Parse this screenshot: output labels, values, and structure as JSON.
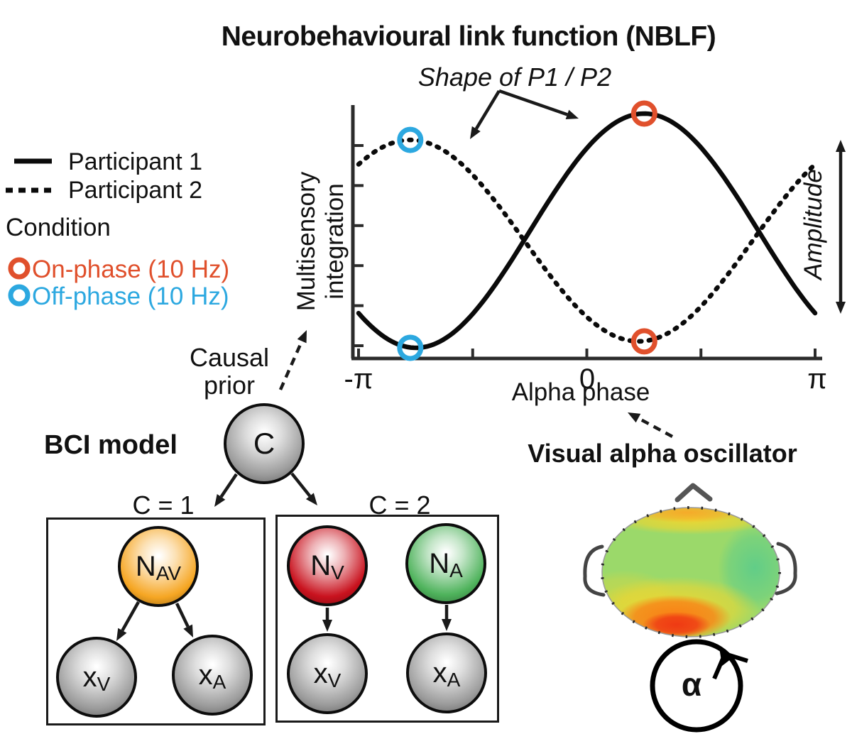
{
  "figure_title": "Neurobehavioural link function (NBLF)",
  "nblf": {
    "subtitle": "Shape of P1 / P2",
    "xlabel": "Alpha phase",
    "ylabel_line1": "Multisensory",
    "ylabel_line2": "integration",
    "amplitude_label": "Amplitude",
    "tick_neg_pi": "-π",
    "tick_zero": "0",
    "tick_pi": "π"
  },
  "legend": {
    "participant1": "Participant 1",
    "participant2": "Participant 2",
    "condition_title": "Condition",
    "on_phase_label": "On-phase (10 Hz)",
    "off_phase_label": "Off-phase (10 Hz)",
    "on_phase_color": "#E0502C",
    "off_phase_color": "#2CA8E0"
  },
  "chart_data": {
    "type": "line",
    "title": "Neurobehavioural link function (NBLF)",
    "xlabel": "Alpha phase",
    "ylabel": "Multisensory integration",
    "x_domain_rad": [
      -3.1416,
      3.1416
    ],
    "x_tick_labels": [
      "-π",
      "0",
      "π"
    ],
    "y_axis_numeric_labels": false,
    "series": [
      {
        "name": "Participant 1",
        "line_style": "solid",
        "color": "#0a0a0a",
        "waveform": "cosine",
        "peak_phase_rad": 0.79,
        "trough_phase_rad": -2.35,
        "amplitude_norm": 1.0
      },
      {
        "name": "Participant 2",
        "line_style": "dotted",
        "color": "#0a0a0a",
        "waveform": "cosine",
        "peak_phase_rad": -2.43,
        "trough_phase_rad": 0.71,
        "amplitude_norm": 0.86
      }
    ],
    "markers": [
      {
        "condition": "On-phase (10 Hz)",
        "color": "#E0502C",
        "series": "Participant 1",
        "phase_rad": 0.79,
        "position": "peak"
      },
      {
        "condition": "On-phase (10 Hz)",
        "color": "#E0502C",
        "series": "Participant 2",
        "phase_rad": 0.79,
        "position": "trough"
      },
      {
        "condition": "Off-phase (10 Hz)",
        "color": "#2CA8E0",
        "series": "Participant 2",
        "phase_rad": -2.43,
        "position": "peak"
      },
      {
        "condition": "Off-phase (10 Hz)",
        "color": "#2CA8E0",
        "series": "Participant 1",
        "phase_rad": -2.43,
        "position": "trough"
      }
    ],
    "annotations": [
      "Shape of P1 / P2",
      "Amplitude"
    ]
  },
  "bci": {
    "model_label": "BCI model",
    "causal_prior_line1": "Causal",
    "causal_prior_line2": "prior",
    "c_node_label": "C",
    "c1_label": "C = 1",
    "c2_label": "C = 2",
    "node_nav": {
      "main": "N",
      "sub": "AV"
    },
    "node_nv": {
      "main": "N",
      "sub": "V"
    },
    "node_na": {
      "main": "N",
      "sub": "A"
    },
    "node_xv": {
      "main": "x",
      "sub": "V"
    },
    "node_xa": {
      "main": "x",
      "sub": "A"
    },
    "colors": {
      "audiovisual_node": "#F6A623",
      "visual_node": "#C9121E",
      "auditory_node": "#4FB35C",
      "latent_node_gray": "#9C9C9C"
    }
  },
  "oscillator": {
    "title": "Visual alpha oscillator",
    "alpha_symbol": "α",
    "topography_colors": {
      "scalp_base_green": "#9BD96A",
      "right_teal": "#57CB8D",
      "frontal_band_orange": "#F7A828",
      "occipital_hotspot_red": "#EF3A14",
      "occipital_mid_orange": "#F97E15",
      "occipital_outer_yellow": "#F2D62E"
    }
  }
}
